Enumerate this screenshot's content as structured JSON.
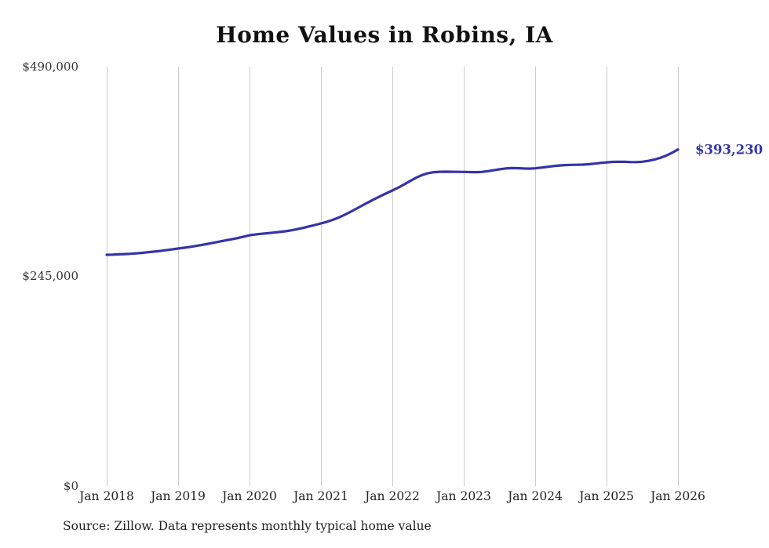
{
  "chart_data": {
    "type": "line",
    "title": "Home Values in Robins, IA",
    "source": "Source: Zillow. Data represents monthly typical home value",
    "end_label": "$393,230",
    "end_value": 393230,
    "line_color": "#3434aa",
    "grid_color": "#cccccc",
    "ylim": [
      0,
      490000
    ],
    "y_ticks": [
      0,
      245000,
      490000
    ],
    "y_tick_labels": [
      "$0",
      "$245,000",
      "$490,000"
    ],
    "x_tick_labels": [
      "Jan 2018",
      "Jan 2019",
      "Jan 2020",
      "Jan 2021",
      "Jan 2022",
      "Jan 2023",
      "Jan 2024",
      "Jan 2025",
      "Jan 2026"
    ],
    "x_unit": "month",
    "x_start": "Jan 2018",
    "x_end": "Jan 2026",
    "legend": "none",
    "grid": "vertical-only",
    "values": [
      270200,
      270400,
      270700,
      271000,
      271400,
      271900,
      272500,
      273200,
      273900,
      274700,
      275600,
      276500,
      277500,
      278400,
      279400,
      280500,
      281700,
      283000,
      284300,
      285700,
      287000,
      288300,
      289700,
      291300,
      293000,
      293900,
      294700,
      295400,
      296100,
      296800,
      297700,
      298800,
      300100,
      301600,
      303300,
      305000,
      306800,
      308700,
      311000,
      313800,
      317000,
      320500,
      324200,
      328000,
      331700,
      335300,
      338700,
      342100,
      345300,
      348700,
      352500,
      356500,
      360200,
      363300,
      365500,
      366700,
      367200,
      367300,
      367200,
      367100,
      367000,
      366800,
      366700,
      367000,
      367800,
      368900,
      370100,
      371000,
      371500,
      371400,
      371000,
      370800,
      371200,
      372000,
      372900,
      373800,
      374500,
      375000,
      375200,
      375300,
      375500,
      376000,
      376700,
      377500,
      378200,
      378700,
      378900,
      378800,
      378500,
      378400,
      378900,
      379900,
      381400,
      383400,
      386000,
      389300,
      393230
    ]
  }
}
